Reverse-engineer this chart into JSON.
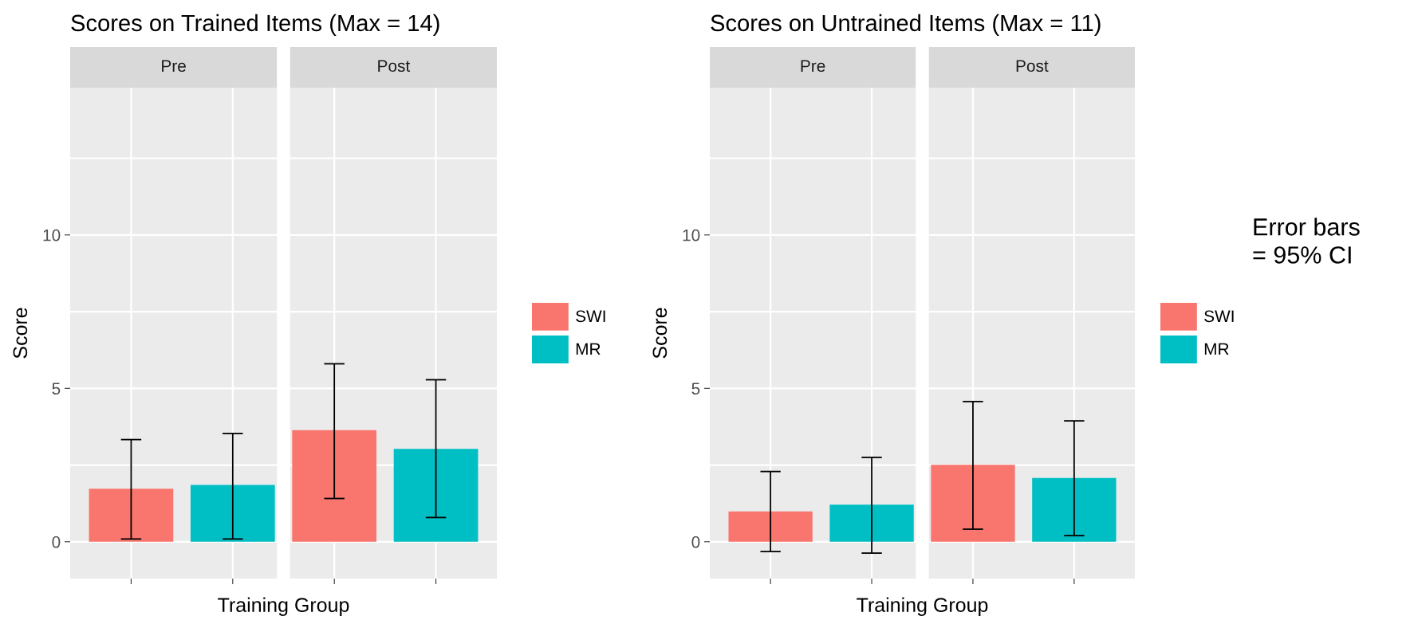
{
  "chart_data": [
    {
      "type": "bar",
      "title": "Scores on Trained Items (Max = 14)",
      "xlabel": "Training Group",
      "ylabel": "Score",
      "categories": [
        null,
        null,
        null,
        null
      ],
      "series": [
        {
          "name": "SWI",
          "color": "#f8766d",
          "values": [
            1.73,
            null,
            3.64,
            null
          ],
          "errors": [
            [
              0.09,
              3.33
            ],
            null,
            [
              1.41,
              5.8
            ],
            null
          ]
        },
        {
          "name": "MR",
          "color": "#00bfc4",
          "values": [
            null,
            1.85,
            null,
            3.03
          ],
          "errors": [
            null,
            [
              0.09,
              3.53
            ],
            null,
            [
              0.79,
              5.28
            ]
          ]
        }
      ],
      "ylim": [
        -1.2,
        14.8
      ],
      "yticks": [
        0,
        {
          "value": 2.5,
          "label": null
        },
        5,
        {
          "value": 7.5,
          "label": null
        },
        10,
        {
          "value": 12.5,
          "label": null
        }
      ],
      "tick_labels": "y",
      "grid": true,
      "legend": "right",
      "annotations": [
        "Pre",
        "Post"
      ]
    },
    {
      "type": "bar",
      "title": "Scores on Untrained Items (Max = 11)",
      "xlabel": "Training Group",
      "ylabel": "Score",
      "categories": [
        null,
        null,
        null,
        null
      ],
      "series": [
        {
          "name": "SWI",
          "color": "#f8766d",
          "values": [
            0.99,
            null,
            2.51,
            null
          ],
          "errors": [
            [
              -0.32,
              2.29
            ],
            null,
            [
              0.41,
              4.57
            ],
            null
          ]
        },
        {
          "name": "MR",
          "color": "#00bfc4",
          "values": [
            null,
            1.21,
            null,
            2.08
          ],
          "errors": [
            null,
            [
              -0.37,
              2.75
            ],
            null,
            [
              0.2,
              3.94
            ]
          ]
        }
      ],
      "ylim": [
        -1.2,
        14.8
      ],
      "yticks": [
        0,
        {
          "value": 2.5,
          "label": null
        },
        5,
        {
          "value": 7.5,
          "label": null
        },
        10,
        {
          "value": 12.5,
          "label": null
        }
      ],
      "tick_labels": "y",
      "grid": true,
      "legend": "right",
      "annotations": [
        "Pre",
        "Post",
        "Error bars\n= 95% CI"
      ]
    }
  ]
}
